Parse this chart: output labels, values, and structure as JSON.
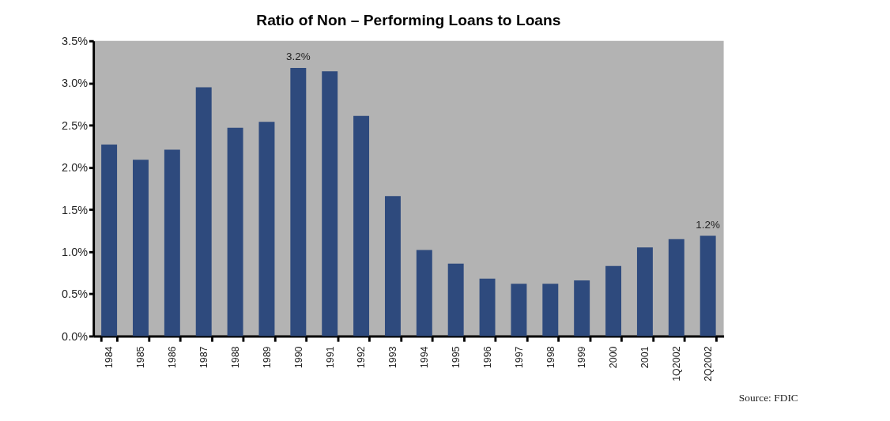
{
  "chart_data": {
    "type": "bar",
    "title": "Ratio of Non – Performing Loans to Loans",
    "categories": [
      "1984",
      "1985",
      "1986",
      "1987",
      "1988",
      "1989",
      "1990",
      "1991",
      "1992",
      "1993",
      "1994",
      "1995",
      "1996",
      "1997",
      "1998",
      "1999",
      "2000",
      "2001",
      "1Q2002",
      "2Q2002"
    ],
    "values": [
      2.27,
      2.09,
      2.21,
      2.95,
      2.47,
      2.54,
      3.18,
      3.14,
      2.61,
      1.66,
      1.02,
      0.86,
      0.68,
      0.62,
      0.62,
      0.66,
      0.83,
      1.05,
      1.15,
      1.19
    ],
    "value_labels": [
      null,
      null,
      null,
      null,
      null,
      null,
      "3.2%",
      null,
      null,
      null,
      null,
      null,
      null,
      null,
      null,
      null,
      null,
      null,
      null,
      "1.2%"
    ],
    "color": "#2e4a7d",
    "ylim": [
      0,
      3.5
    ],
    "yticks": [
      {
        "value": 0,
        "label": "0.0%"
      },
      {
        "value": 0.5,
        "label": "0.5%"
      },
      {
        "value": 1,
        "label": "1.0%"
      },
      {
        "value": 1.5,
        "label": "1.5%"
      },
      {
        "value": 2,
        "label": "2.0%"
      },
      {
        "value": 2.5,
        "label": "2.5%"
      },
      {
        "value": 3,
        "label": "3.0%"
      },
      {
        "value": 3.5,
        "label": "3.5%"
      }
    ],
    "grid": false,
    "annotations": [
      "Source: FDIC"
    ]
  }
}
